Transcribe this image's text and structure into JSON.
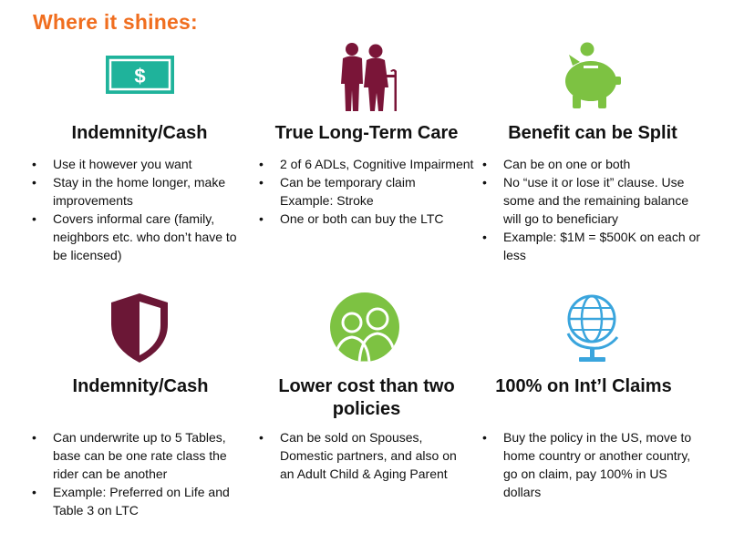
{
  "title": "Where it shines:",
  "colors": {
    "title": "#f06e1f",
    "cash_icon": "#1fb39b",
    "elderly_icon": "#7a1538",
    "piggy_icon": "#7dc242",
    "shield_icon": "#6b1736",
    "family_icon": "#7dc242",
    "globe_icon": "#3aa5dd"
  },
  "cells": [
    {
      "icon": "dollar-bill-icon",
      "heading": "Indemnity/Cash",
      "bullets": [
        "Use it however you want",
        "Stay in the home longer, make improvements",
        "Covers informal care (family, neighbors etc. who don’t have to be licensed)"
      ]
    },
    {
      "icon": "elderly-couple-icon",
      "heading": "True Long-Term Care",
      "bullets": [
        "2 of 6 ADLs, Cognitive Impairment",
        "Can be temporary claim Example: Stroke",
        "One or both can buy the LTC"
      ]
    },
    {
      "icon": "piggy-bank-icon",
      "heading": "Benefit can be Split",
      "bullets": [
        "Can be on one or both",
        "No “use it or lose it” clause. Use some and the remaining balance will go to beneficiary",
        "Example: $1M = $500K on each or less"
      ]
    },
    {
      "icon": "shield-icon",
      "heading": "Indemnity/Cash",
      "bullets": [
        "Can underwrite up to 5 Tables, base can be one rate class the rider can be another",
        "Example: Preferred on Life and Table 3 on LTC"
      ]
    },
    {
      "icon": "family-icon",
      "heading": "Lower cost than two policies",
      "bullets": [
        "Can be sold on Spouses, Domestic partners, and also on an Adult Child & Aging Parent"
      ]
    },
    {
      "icon": "globe-icon",
      "heading": "100% on Int’l Claims",
      "bullets": [
        "Buy the policy in the US, move to home country or another country, go on claim, pay 100% in US dollars"
      ]
    }
  ]
}
